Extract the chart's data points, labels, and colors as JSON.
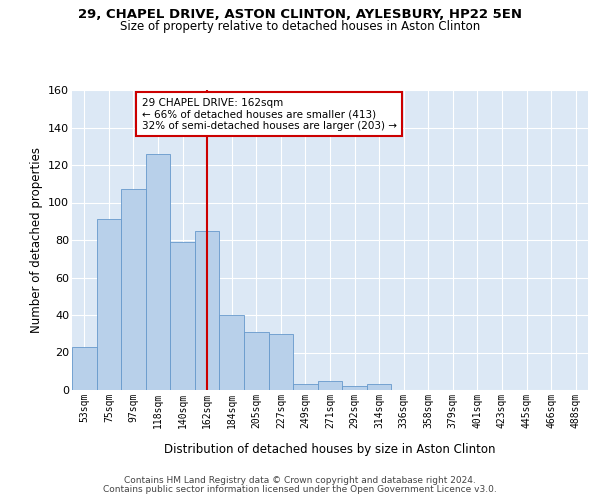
{
  "title_line1": "29, CHAPEL DRIVE, ASTON CLINTON, AYLESBURY, HP22 5EN",
  "title_line2": "Size of property relative to detached houses in Aston Clinton",
  "xlabel": "Distribution of detached houses by size in Aston Clinton",
  "ylabel": "Number of detached properties",
  "bar_color": "#b8d0ea",
  "bar_edge_color": "#6699cc",
  "background_color": "#dce8f5",
  "grid_color": "#ffffff",
  "annotation_text": "29 CHAPEL DRIVE: 162sqm\n← 66% of detached houses are smaller (413)\n32% of semi-detached houses are larger (203) →",
  "annotation_box_edge": "#cc0000",
  "vline_idx": 5,
  "vline_color": "#cc0000",
  "categories": [
    "53sqm",
    "75sqm",
    "97sqm",
    "118sqm",
    "140sqm",
    "162sqm",
    "184sqm",
    "205sqm",
    "227sqm",
    "249sqm",
    "271sqm",
    "292sqm",
    "314sqm",
    "336sqm",
    "358sqm",
    "379sqm",
    "401sqm",
    "423sqm",
    "445sqm",
    "466sqm",
    "488sqm"
  ],
  "values": [
    23,
    91,
    107,
    126,
    79,
    85,
    40,
    31,
    30,
    3,
    5,
    2,
    3,
    0,
    0,
    0,
    0,
    0,
    0,
    0,
    0
  ],
  "ylim": [
    0,
    160
  ],
  "yticks": [
    0,
    20,
    40,
    60,
    80,
    100,
    120,
    140,
    160
  ],
  "footnote1": "Contains HM Land Registry data © Crown copyright and database right 2024.",
  "footnote2": "Contains public sector information licensed under the Open Government Licence v3.0."
}
